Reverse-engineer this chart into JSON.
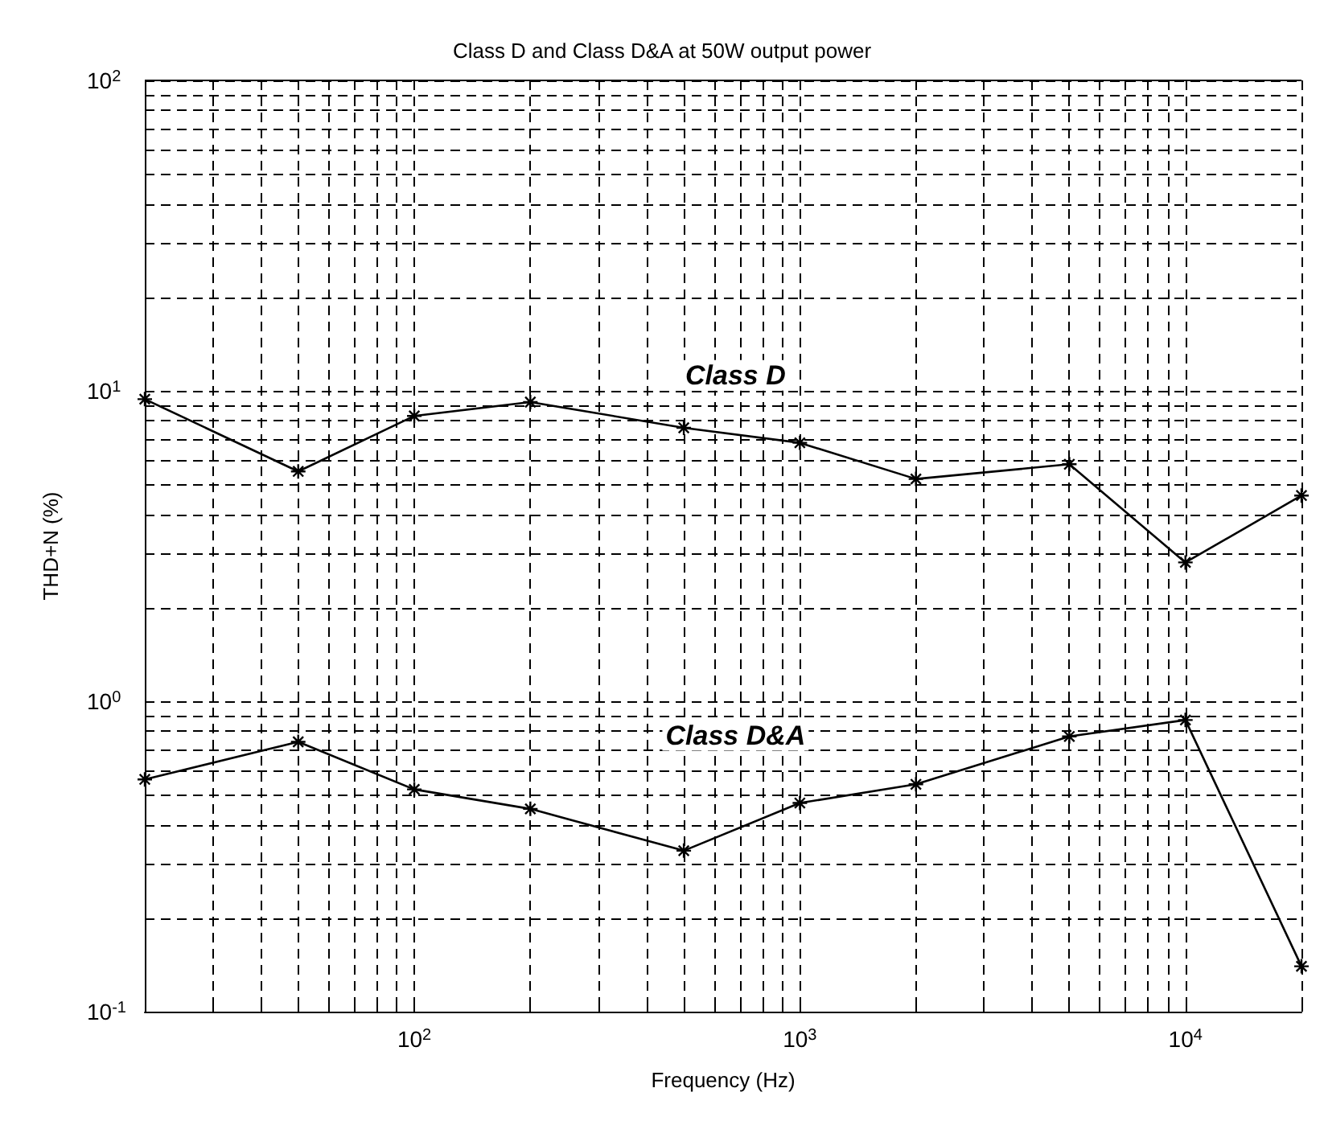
{
  "chart_data": {
    "type": "line",
    "title": "Class D and Class D&A at 50W output power",
    "xlabel": "Frequency (Hz)",
    "ylabel": "THD+N (%)",
    "x": [
      20,
      50,
      100,
      200,
      500,
      1000,
      2000,
      5000,
      10000,
      20000
    ],
    "series": [
      {
        "color": "#000000",
        "values": [
          9.4,
          5.5,
          8.3,
          9.2,
          7.6,
          6.8,
          5.2,
          5.8,
          2.8,
          4.6
        ]
      },
      {
        "color": "#000000",
        "values": [
          0.56,
          0.74,
          0.52,
          0.45,
          0.33,
          0.47,
          0.54,
          0.77,
          0.87,
          0.14
        ]
      }
    ],
    "annotations": [
      "Class D",
      "Class D&A"
    ],
    "log": "xy",
    "xlim": [
      20,
      20000
    ],
    "ylim": [
      0.1,
      100
    ],
    "xticks": [
      {
        "value": 20,
        "label": null
      },
      {
        "value": 30,
        "label": null
      },
      {
        "value": 40,
        "label": null
      },
      {
        "value": 50,
        "label": null
      },
      {
        "value": 60,
        "label": null
      },
      {
        "value": 70,
        "label": null
      },
      {
        "value": 80,
        "label": null
      },
      {
        "value": 90,
        "label": null
      },
      {
        "value": 100,
        "label": "10$^{2}$"
      },
      {
        "value": 200,
        "label": null
      },
      {
        "value": 300,
        "label": null
      },
      {
        "value": 400,
        "label": null
      },
      {
        "value": 500,
        "label": null
      },
      {
        "value": 600,
        "label": null
      },
      {
        "value": 700,
        "label": null
      },
      {
        "value": 800,
        "label": null
      },
      {
        "value": 900,
        "label": null
      },
      {
        "value": 1000,
        "label": "10$^{3}$"
      },
      {
        "value": 2000,
        "label": null
      },
      {
        "value": 3000,
        "label": null
      },
      {
        "value": 4000,
        "label": null
      },
      {
        "value": 5000,
        "label": null
      },
      {
        "value": 6000,
        "label": null
      },
      {
        "value": 7000,
        "label": null
      },
      {
        "value": 8000,
        "label": null
      },
      {
        "value": 9000,
        "label": null
      },
      {
        "value": 10000,
        "label": "10$^{4}$"
      },
      {
        "value": 20000,
        "label": null
      }
    ],
    "yticks": [
      {
        "value": 0.1,
        "label": "10$^{-1}$"
      },
      {
        "value": 0.2,
        "label": null
      },
      {
        "value": 0.3,
        "label": null
      },
      {
        "value": 0.4,
        "label": null
      },
      {
        "value": 0.5,
        "label": null
      },
      {
        "value": 0.6,
        "label": null
      },
      {
        "value": 0.7,
        "label": null
      },
      {
        "value": 0.8,
        "label": null
      },
      {
        "value": 0.9,
        "label": null
      },
      {
        "value": 1,
        "label": "10$^{0}$"
      },
      {
        "value": 2,
        "label": null
      },
      {
        "value": 3,
        "label": null
      },
      {
        "value": 4,
        "label": null
      },
      {
        "value": 5,
        "label": null
      },
      {
        "value": 6,
        "label": null
      },
      {
        "value": 7,
        "label": null
      },
      {
        "value": 8,
        "label": null
      },
      {
        "value": 9,
        "label": null
      },
      {
        "value": 10,
        "label": "10$^{1}$"
      },
      {
        "value": 20,
        "label": null
      },
      {
        "value": 30,
        "label": null
      },
      {
        "value": 40,
        "label": null
      },
      {
        "value": 50,
        "label": null
      },
      {
        "value": 60,
        "label": null
      },
      {
        "value": 70,
        "label": null
      },
      {
        "value": 80,
        "label": null
      },
      {
        "value": 90,
        "label": null
      },
      {
        "value": 100,
        "label": "10$^{2}$"
      }
    ],
    "grid": true,
    "marker": "cross",
    "line_style": "solid"
  }
}
